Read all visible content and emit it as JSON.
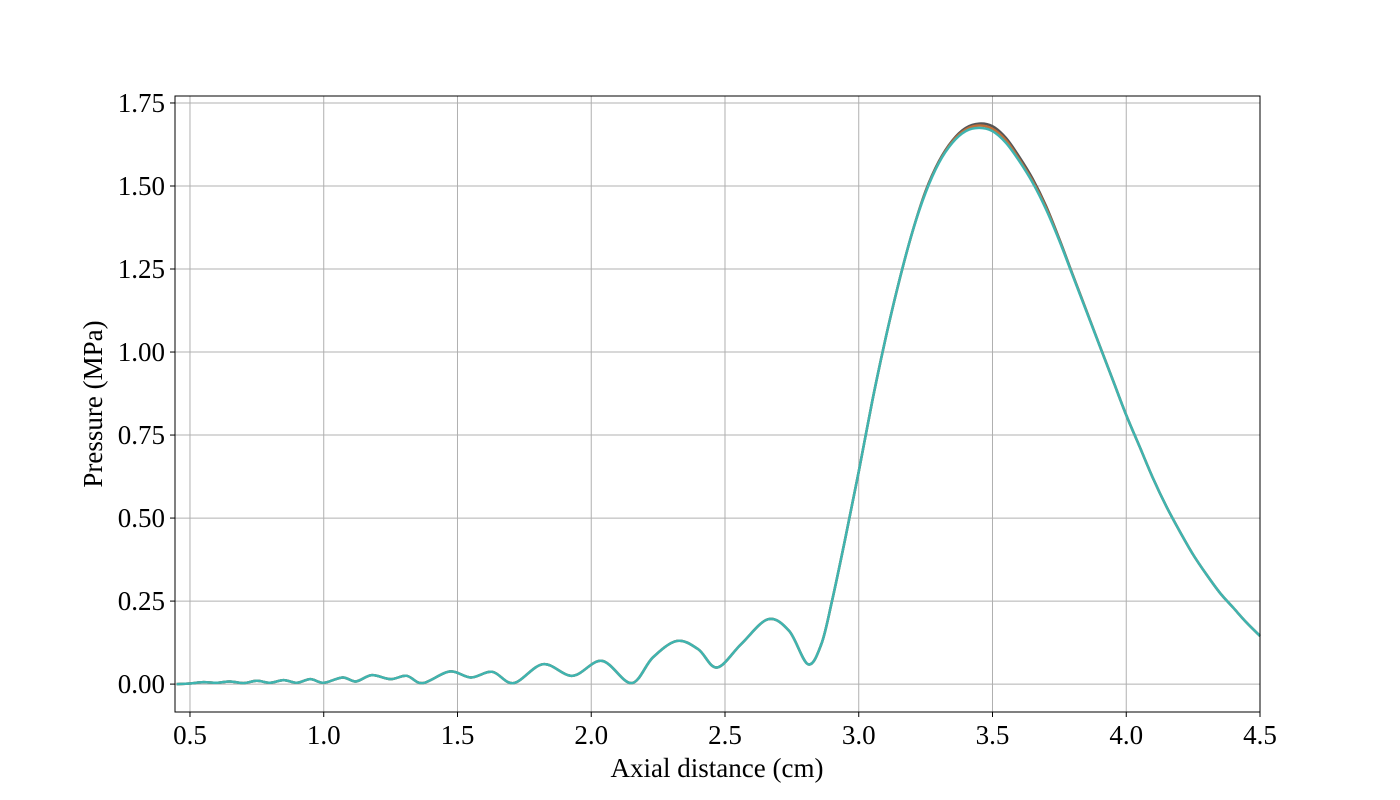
{
  "chart_data": {
    "type": "line",
    "x_label": "Axial distance (cm)",
    "y_label": "Pressure (MPa)",
    "x": [
      0.45,
      0.5,
      0.55,
      0.6,
      0.65,
      0.7,
      0.75,
      0.8,
      0.85,
      0.9,
      0.95,
      1.0,
      1.07,
      1.12,
      1.18,
      1.25,
      1.31,
      1.37,
      1.47,
      1.55,
      1.63,
      1.71,
      1.82,
      1.93,
      2.04,
      2.15,
      2.23,
      2.32,
      2.4,
      2.47,
      2.56,
      2.66,
      2.74,
      2.81,
      2.86,
      2.9,
      2.95,
      3.0,
      3.05,
      3.1,
      3.15,
      3.2,
      3.25,
      3.3,
      3.35,
      3.4,
      3.45,
      3.5,
      3.55,
      3.6,
      3.65,
      3.7,
      3.75,
      3.8,
      3.85,
      3.9,
      3.95,
      4.0,
      4.05,
      4.1,
      4.15,
      4.2,
      4.25,
      4.3,
      4.35,
      4.4,
      4.45,
      4.5
    ],
    "series": [
      {
        "color": "#555555",
        "values": [
          0,
          0.002,
          0.006,
          0.004,
          0.008,
          0.003,
          0.01,
          0.004,
          0.012,
          0.004,
          0.015,
          0.004,
          0.02,
          0.008,
          0.027,
          0.015,
          0.025,
          0.003,
          0.038,
          0.02,
          0.037,
          0.003,
          0.06,
          0.025,
          0.07,
          0.003,
          0.08,
          0.13,
          0.105,
          0.05,
          0.12,
          0.195,
          0.16,
          0.06,
          0.12,
          0.25,
          0.44,
          0.64,
          0.85,
          1.04,
          1.21,
          1.36,
          1.485,
          1.575,
          1.637,
          1.675,
          1.688,
          1.68,
          1.645,
          1.588,
          1.522,
          1.44,
          1.34,
          1.233,
          1.127,
          1.021,
          0.916,
          0.81,
          0.715,
          0.62,
          0.535,
          0.46,
          0.39,
          0.33,
          0.275,
          0.23,
          0.185,
          0.145
        ]
      },
      {
        "color": "#c0703a",
        "values": [
          0,
          0.002,
          0.006,
          0.004,
          0.008,
          0.003,
          0.01,
          0.004,
          0.012,
          0.004,
          0.015,
          0.004,
          0.02,
          0.008,
          0.027,
          0.015,
          0.025,
          0.003,
          0.038,
          0.02,
          0.037,
          0.003,
          0.06,
          0.025,
          0.07,
          0.003,
          0.08,
          0.13,
          0.105,
          0.05,
          0.12,
          0.195,
          0.16,
          0.06,
          0.12,
          0.25,
          0.44,
          0.64,
          0.85,
          1.04,
          1.21,
          1.36,
          1.482,
          1.572,
          1.634,
          1.67,
          1.682,
          1.672,
          1.638,
          1.58,
          1.515,
          1.435,
          1.337,
          1.231,
          1.126,
          1.02,
          0.915,
          0.81,
          0.715,
          0.62,
          0.535,
          0.46,
          0.39,
          0.33,
          0.275,
          0.23,
          0.185,
          0.145
        ]
      },
      {
        "color": "#3fb4b0",
        "values": [
          0,
          0.002,
          0.006,
          0.004,
          0.008,
          0.003,
          0.01,
          0.004,
          0.012,
          0.004,
          0.015,
          0.004,
          0.02,
          0.008,
          0.027,
          0.015,
          0.025,
          0.003,
          0.038,
          0.02,
          0.037,
          0.003,
          0.06,
          0.025,
          0.07,
          0.003,
          0.08,
          0.13,
          0.105,
          0.05,
          0.12,
          0.195,
          0.16,
          0.06,
          0.12,
          0.25,
          0.44,
          0.64,
          0.85,
          1.04,
          1.21,
          1.36,
          1.48,
          1.57,
          1.63,
          1.665,
          1.675,
          1.665,
          1.63,
          1.575,
          1.51,
          1.43,
          1.335,
          1.23,
          1.125,
          1.02,
          0.915,
          0.81,
          0.715,
          0.62,
          0.535,
          0.46,
          0.39,
          0.33,
          0.275,
          0.23,
          0.185,
          0.145
        ]
      }
    ],
    "xlim": [
      0.444,
      4.5
    ],
    "ylim": [
      -0.084,
      1.771
    ],
    "xticks": [
      {
        "value": 0.5,
        "label": "0.5"
      },
      {
        "value": 1,
        "label": "1.0"
      },
      {
        "value": 1.5,
        "label": "1.5"
      },
      {
        "value": 2,
        "label": "2.0"
      },
      {
        "value": 2.5,
        "label": "2.5"
      },
      {
        "value": 3,
        "label": "3.0"
      },
      {
        "value": 3.5,
        "label": "3.5"
      },
      {
        "value": 4,
        "label": "4.0"
      },
      {
        "value": 4.5,
        "label": "4.5"
      }
    ],
    "yticks": [
      {
        "value": 0,
        "label": "0.00"
      },
      {
        "value": 0.25,
        "label": "0.25"
      },
      {
        "value": 0.5,
        "label": "0.50"
      },
      {
        "value": 0.75,
        "label": "0.75"
      },
      {
        "value": 1,
        "label": "1.00"
      },
      {
        "value": 1.25,
        "label": "1.25"
      },
      {
        "value": 1.5,
        "label": "1.50"
      },
      {
        "value": 1.75,
        "label": "1.75"
      }
    ],
    "grid": true
  }
}
